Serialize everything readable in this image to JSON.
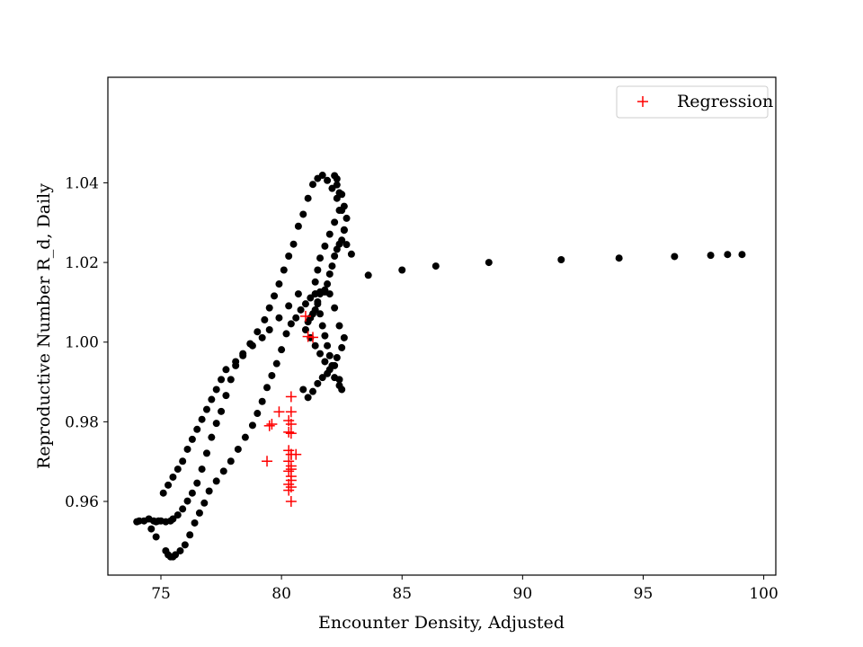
{
  "chart_data": {
    "type": "scatter",
    "title": "",
    "xlabel": "Encounter Density, Adjusted",
    "ylabel": "Reproductive Number R_d, Daily",
    "xlim": [
      72.8,
      100.5
    ],
    "ylim": [
      0.9415,
      1.0665
    ],
    "xticks": [
      75,
      80,
      85,
      90,
      95,
      100
    ],
    "xtick_labels": [
      "75",
      "80",
      "85",
      "90",
      "95",
      "100"
    ],
    "yticks": [
      0.96,
      0.98,
      1.0,
      1.02,
      1.04
    ],
    "ytick_labels": [
      "0.96",
      "0.98",
      "1.00",
      "1.02",
      "1.04"
    ],
    "grid": false,
    "legend_position": "top-right",
    "series": [
      {
        "marker": "circle",
        "color": "#000000",
        "x": [
          99.1,
          98.5,
          97.8,
          96.3,
          94.0,
          91.6,
          88.6,
          86.4,
          85.0,
          83.6,
          82.9,
          82.7,
          82.6,
          82.5,
          82.4,
          82.3,
          82.2,
          82.3,
          82.5,
          82.6,
          82.7,
          82.6,
          82.5,
          82.4,
          82.3,
          82.2,
          82.1,
          82.0,
          81.9,
          81.8,
          81.6,
          81.5,
          81.4,
          81.3,
          81.2,
          81.1,
          81.0,
          81.2,
          81.4,
          81.6,
          81.8,
          82.0,
          82.2,
          82.4,
          82.5,
          82.4,
          82.2,
          82.0,
          81.9,
          81.8,
          81.7,
          81.6,
          81.5,
          81.4,
          81.4,
          81.5,
          81.6,
          81.8,
          82.0,
          82.2,
          82.4,
          82.3,
          82.1,
          81.9,
          81.7,
          81.5,
          81.3,
          81.1,
          80.9,
          80.7,
          80.5,
          80.3,
          80.1,
          79.9,
          79.7,
          79.5,
          79.3,
          79.0,
          78.7,
          78.4,
          78.1,
          77.9,
          77.7,
          77.5,
          77.3,
          77.1,
          76.9,
          76.7,
          76.5,
          76.3,
          76.1,
          75.9,
          75.7,
          75.5,
          75.4,
          75.2,
          75.0,
          74.9,
          74.8,
          74.7,
          74.5,
          74.3,
          74.1,
          74.0,
          74.6,
          74.8,
          75.2,
          75.3,
          75.4,
          75.5,
          75.6,
          75.8,
          76.0,
          76.2,
          76.4,
          76.6,
          76.8,
          77.0,
          77.3,
          77.6,
          77.9,
          78.2,
          78.5,
          78.8,
          79.0,
          79.2,
          79.4,
          79.6,
          79.8,
          80.0,
          80.2,
          80.4,
          80.6,
          80.8,
          81.0,
          81.2,
          81.4,
          81.6,
          81.8,
          82.0,
          82.2,
          82.4,
          82.6,
          82.5,
          82.3,
          82.1,
          81.9,
          81.7,
          81.5,
          81.3,
          81.1,
          80.9,
          80.7,
          80.3,
          79.9,
          79.5,
          79.2,
          78.8,
          78.4,
          78.1,
          77.7,
          77.5,
          77.3,
          77.1,
          76.9,
          76.7,
          76.5,
          76.3,
          76.1,
          75.9,
          75.7,
          75.5,
          75.3,
          75.1
        ],
        "y": [
          1.022,
          1.022,
          1.0218,
          1.0215,
          1.0211,
          1.0207,
          1.02,
          1.0191,
          1.0181,
          1.0168,
          1.0221,
          1.0245,
          1.0282,
          1.0331,
          1.0375,
          1.041,
          1.0418,
          1.0395,
          1.0371,
          1.0341,
          1.0311,
          1.0281,
          1.0256,
          1.0246,
          1.0233,
          1.0216,
          1.0191,
          1.0171,
          1.0146,
          1.0126,
          1.0121,
          1.0101,
          1.0081,
          1.0071,
          1.0061,
          1.0051,
          1.0031,
          1.0011,
          0.9991,
          0.9971,
          0.9951,
          0.9931,
          0.9911,
          0.9891,
          0.9881,
          0.9906,
          0.9941,
          0.9966,
          0.9991,
          1.0016,
          1.0041,
          1.0071,
          1.0096,
          1.0121,
          1.0151,
          1.0181,
          1.0211,
          1.0241,
          1.0271,
          1.0301,
          1.0331,
          1.0361,
          1.0386,
          1.0406,
          1.0419,
          1.0411,
          1.0396,
          1.0361,
          1.0321,
          1.0291,
          1.0246,
          1.0216,
          1.0181,
          1.0146,
          1.0116,
          1.0086,
          1.0056,
          1.0026,
          0.9996,
          0.9966,
          0.9941,
          0.9906,
          0.9866,
          0.9826,
          0.9796,
          0.9761,
          0.9721,
          0.9681,
          0.9646,
          0.9621,
          0.9601,
          0.9581,
          0.9566,
          0.9556,
          0.9551,
          0.9549,
          0.9551,
          0.9551,
          0.9549,
          0.9551,
          0.9556,
          0.9551,
          0.9551,
          0.9549,
          0.9531,
          0.9511,
          0.9476,
          0.9466,
          0.9461,
          0.9461,
          0.9466,
          0.9476,
          0.9491,
          0.9516,
          0.9546,
          0.9571,
          0.9596,
          0.9626,
          0.9651,
          0.9676,
          0.9701,
          0.9731,
          0.9761,
          0.9791,
          0.9821,
          0.9851,
          0.9886,
          0.9916,
          0.9946,
          0.9981,
          1.0021,
          1.0046,
          1.0061,
          1.0081,
          1.0096,
          1.0111,
          1.0121,
          1.0126,
          1.0131,
          1.0121,
          1.0086,
          1.0041,
          1.0011,
          0.9986,
          0.9961,
          0.9941,
          0.9921,
          0.9911,
          0.9896,
          0.9876,
          0.9861,
          0.9881,
          1.0121,
          1.0091,
          1.0061,
          1.0031,
          1.0011,
          0.9991,
          0.9971,
          0.9951,
          0.9931,
          0.9906,
          0.9881,
          0.9856,
          0.9831,
          0.9806,
          0.9781,
          0.9756,
          0.9731,
          0.9701,
          0.9681,
          0.9661,
          0.9641,
          0.9621
        ]
      },
      {
        "name": "Regression",
        "marker": "plus",
        "color": "#ff0000",
        "x": [
          81.0,
          81.1,
          81.3,
          80.4,
          80.4,
          80.3,
          80.4,
          80.3,
          80.4,
          80.3,
          80.4,
          80.6,
          80.3,
          80.4,
          80.4,
          80.3,
          80.4,
          80.4,
          80.3,
          80.4,
          80.3,
          80.4,
          80.4,
          79.9,
          79.6,
          79.5,
          79.4,
          80.4
        ],
        "y": [
          1.0065,
          1.0014,
          1.0012,
          0.9863,
          0.9825,
          0.9803,
          0.9794,
          0.9774,
          0.9771,
          0.9728,
          0.9718,
          0.9718,
          0.9701,
          0.9689,
          0.9681,
          0.9676,
          0.9663,
          0.9653,
          0.9643,
          0.9636,
          0.9628,
          0.9718,
          0.96,
          0.9825,
          0.9794,
          0.979,
          0.9701,
          0.9718
        ]
      }
    ]
  }
}
